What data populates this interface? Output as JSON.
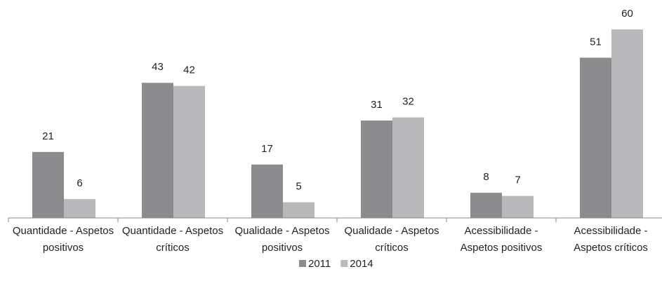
{
  "chart_data": {
    "type": "bar",
    "categories": [
      "Quantidade - Aspetos positivos",
      "Quantidade - Aspetos críticos",
      "Qualidade - Aspetos positivos",
      "Qualidade - Aspetos críticos",
      "Acessibilidade - Aspetos positivos",
      "Acessibilidade - Aspetos críticos"
    ],
    "series": [
      {
        "name": "2011",
        "color": "#8c8c8e",
        "values": [
          21,
          43,
          17,
          31,
          8,
          51
        ]
      },
      {
        "name": "2014",
        "color": "#b9b9bb",
        "values": [
          6,
          42,
          5,
          32,
          7,
          60
        ]
      }
    ],
    "legend": "bottom"
  }
}
